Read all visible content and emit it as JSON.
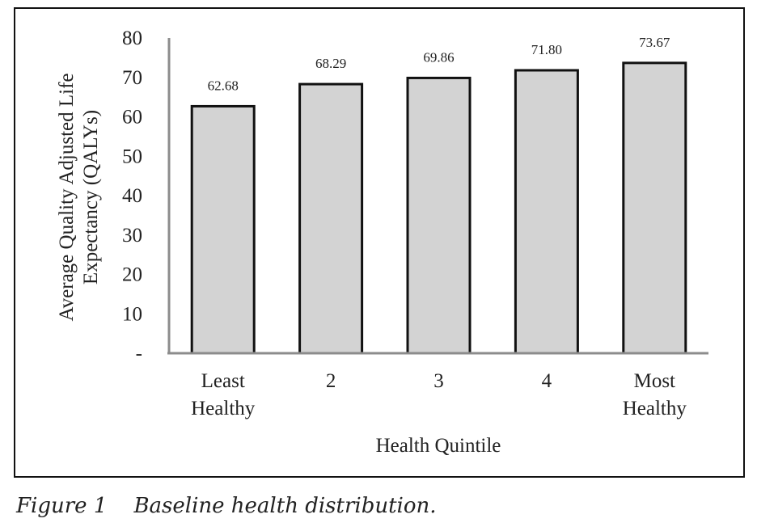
{
  "chart_data": {
    "type": "bar",
    "categories": [
      [
        "Least",
        "Healthy"
      ],
      [
        "2"
      ],
      [
        "3"
      ],
      [
        "4"
      ],
      [
        "Most",
        "Healthy"
      ]
    ],
    "values": [
      62.68,
      68.29,
      69.86,
      71.8,
      73.67
    ],
    "value_labels": [
      "62.68",
      "68.29",
      "69.86",
      "71.80",
      "73.67"
    ],
    "xlabel": "Health Quintile",
    "ylabel": [
      "Average Quality Adjusted Life",
      "Expectancy (QALYs)"
    ],
    "ylim": [
      0,
      80
    ],
    "y_ticks": [
      0,
      10,
      20,
      30,
      40,
      50,
      60,
      70,
      80
    ],
    "y_tick_labels": [
      "-",
      "10",
      "20",
      "30",
      "40",
      "50",
      "60",
      "70",
      "80"
    ],
    "grid": false,
    "legend": "none",
    "bar_fill": "#d3d3d3",
    "bar_stroke": "#111111",
    "axis_color": "#8c8c8c"
  },
  "caption": {
    "label": "Figure 1",
    "text": "Baseline health distribution."
  }
}
